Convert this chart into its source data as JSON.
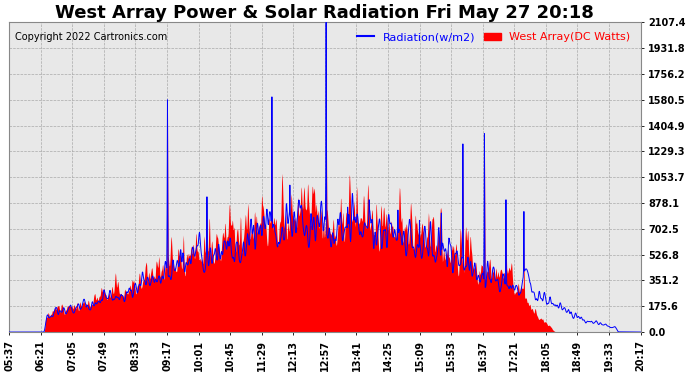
{
  "title": "West Array Power & Solar Radiation Fri May 27 20:18",
  "copyright": "Copyright 2022 Cartronics.com",
  "legend_radiation": "Radiation(w/m2)",
  "legend_west": "West Array(DC Watts)",
  "radiation_color": "blue",
  "west_fill_color": "red",
  "background_color": "#ffffff",
  "plot_bg_color": "#e8e8e8",
  "grid_color": "#aaaaaa",
  "ylim": [
    0,
    2107.4
  ],
  "yticks": [
    0,
    175.6,
    351.2,
    526.8,
    702.5,
    878.1,
    1053.7,
    1229.3,
    1404.9,
    1580.5,
    1756.2,
    1931.8,
    2107.4
  ],
  "ytick_labels": [
    "0.0",
    "175.6",
    "351.2",
    "526.8",
    "702.5",
    "878.1",
    "1053.7",
    "1229.3",
    "1404.9",
    "1580.5",
    "1756.2",
    "1931.8",
    "2107.4"
  ],
  "xtick_labels": [
    "05:37",
    "06:21",
    "07:05",
    "07:49",
    "08:33",
    "09:17",
    "10:01",
    "10:45",
    "11:29",
    "12:13",
    "12:57",
    "13:41",
    "14:25",
    "15:09",
    "15:53",
    "16:37",
    "17:21",
    "18:05",
    "18:49",
    "19:33",
    "20:17"
  ],
  "title_fontsize": 13,
  "axis_fontsize": 7,
  "copyright_fontsize": 7,
  "legend_fontsize": 8,
  "figsize": [
    6.9,
    3.75
  ],
  "dpi": 100
}
